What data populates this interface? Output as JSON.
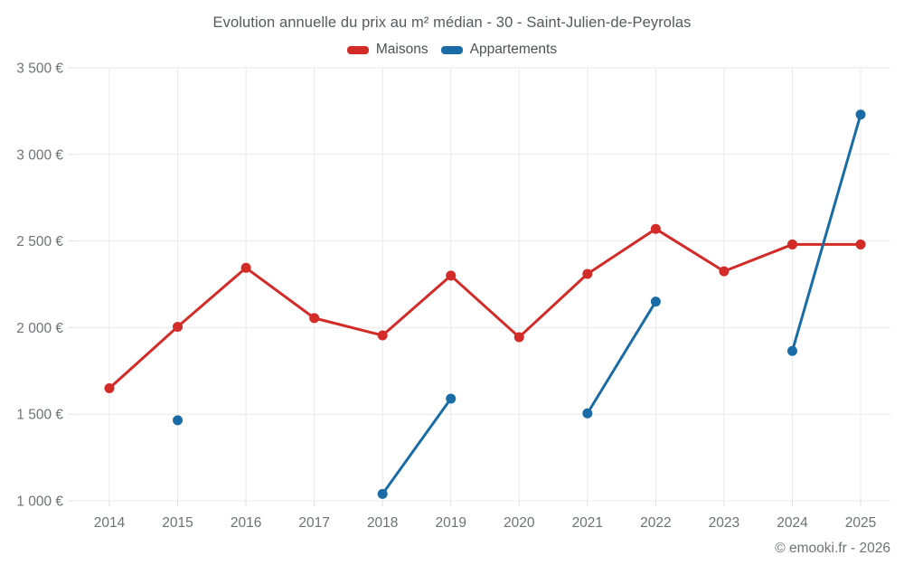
{
  "title": "Evolution annuelle du prix au m² médian - 30 - Saint-Julien-de-Peyrolas",
  "footer": {
    "text": "© emooki.fr - 2026"
  },
  "colors": {
    "maisons": "#d32b28",
    "appartements": "#1a6ca6",
    "grid": "#eaeaea",
    "tick_stub": "#e0e0e0",
    "tick_text": "#6e7276",
    "title_text": "#55595e",
    "legend_text": "#4e5256",
    "background": "#ffffff"
  },
  "chart_data": {
    "type": "line",
    "title": "Evolution annuelle du prix au m² médian - 30 - Saint-Julien-de-Peyrolas",
    "categories": [
      "2014",
      "2015",
      "2016",
      "2017",
      "2018",
      "2019",
      "2020",
      "2021",
      "2022",
      "2023",
      "2024",
      "2025"
    ],
    "series": [
      {
        "name": "Maisons",
        "color": "#d32b28",
        "values": [
          1650,
          2005,
          2345,
          2055,
          1955,
          2300,
          1945,
          2310,
          2570,
          2325,
          2480,
          2480
        ]
      },
      {
        "name": "Appartements",
        "color": "#1a6ca6",
        "values": [
          null,
          1465,
          null,
          null,
          1040,
          1590,
          null,
          1505,
          2150,
          null,
          1865,
          3230
        ]
      }
    ],
    "yticks": [
      {
        "value": 1000,
        "label": "1 000 €"
      },
      {
        "value": 1500,
        "label": "1 500 €"
      },
      {
        "value": 2000,
        "label": "2 000 €"
      },
      {
        "value": 2500,
        "label": "2 500 €"
      },
      {
        "value": 3000,
        "label": "3 000 €"
      },
      {
        "value": 3500,
        "label": "3 500 €"
      }
    ],
    "ylim": [
      1000,
      3500
    ],
    "xlabel": "",
    "ylabel": "",
    "grid": true,
    "legend_position": "top",
    "marker": "circle"
  }
}
